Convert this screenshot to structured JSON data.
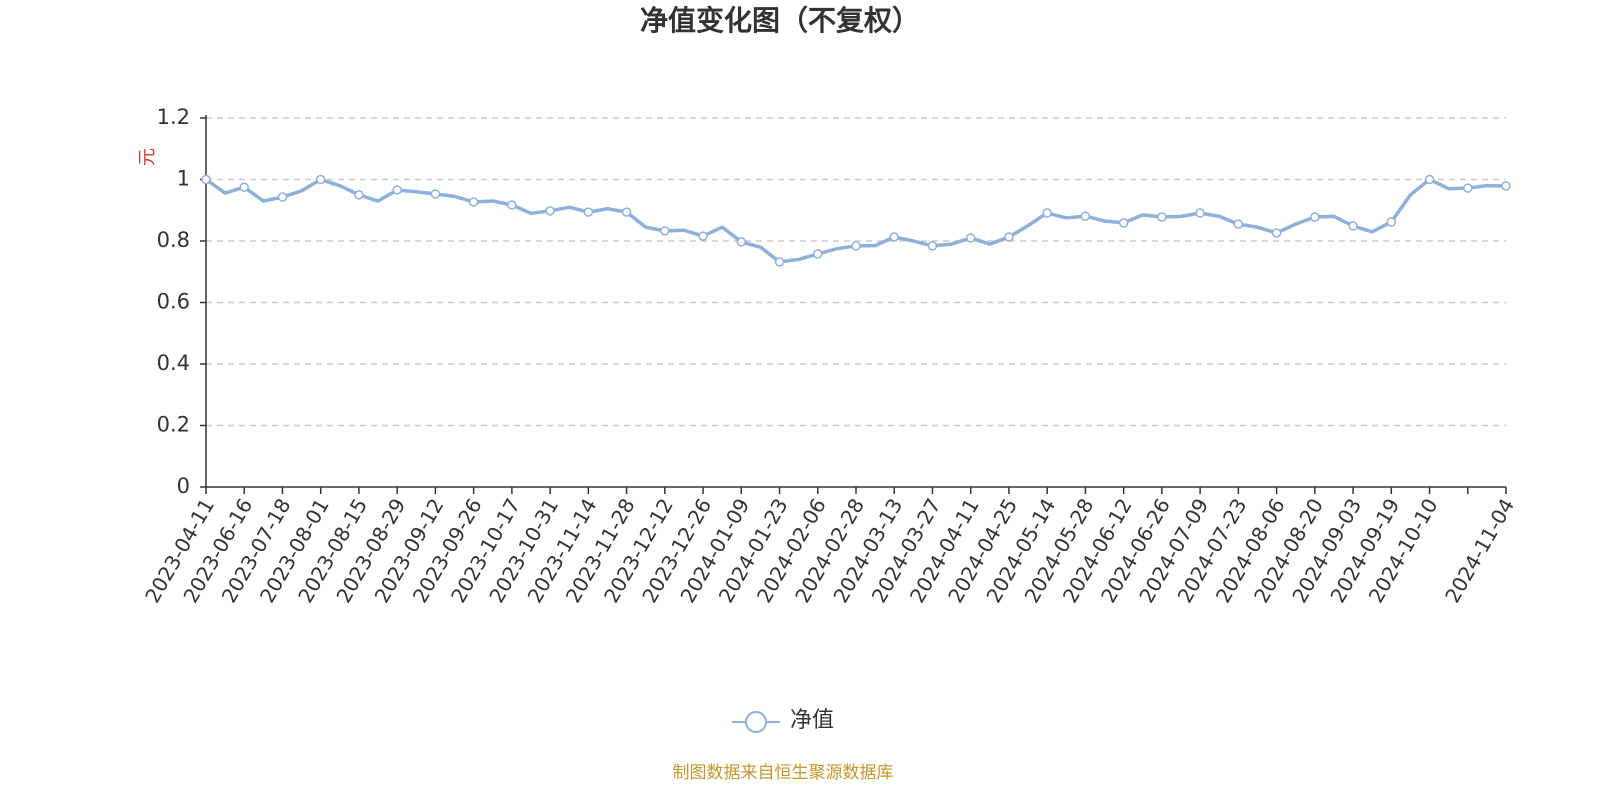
{
  "chart_data": {
    "type": "line",
    "title": "净值变化图（不复权）",
    "y_label": "元",
    "source": "制图数据来自恒生聚源数据库",
    "categories": [
      "2023-04-11",
      null,
      "2023-06-16",
      null,
      "2023-07-18",
      null,
      "2023-08-01",
      null,
      "2023-08-15",
      null,
      "2023-08-29",
      null,
      "2023-09-12",
      null,
      "2023-09-26",
      null,
      "2023-10-17",
      null,
      "2023-10-31",
      null,
      "2023-11-14",
      null,
      "2023-11-28",
      null,
      "2023-12-12",
      null,
      "2023-12-26",
      null,
      "2024-01-09",
      null,
      "2024-01-23",
      null,
      "2024-02-06",
      null,
      "2024-02-28",
      null,
      "2024-03-13",
      null,
      "2024-03-27",
      null,
      "2024-04-11",
      null,
      "2024-04-25",
      null,
      "2024-05-14",
      null,
      "2024-05-28",
      null,
      "2024-06-12",
      null,
      "2024-06-26",
      null,
      "2024-07-09",
      null,
      "2024-07-23",
      null,
      "2024-08-06",
      null,
      "2024-08-20",
      null,
      "2024-09-03",
      null,
      "2024-09-19",
      null,
      "2024-10-10",
      null,
      null,
      null,
      "2024-11-04"
    ],
    "series": [
      {
        "name": "净值",
        "color": "#8eb0dc",
        "values": [
          1.0,
          0.956,
          0.975,
          0.93,
          0.943,
          0.963,
          1.0,
          0.98,
          0.95,
          0.93,
          0.966,
          0.96,
          0.953,
          0.945,
          0.927,
          0.93,
          0.917,
          0.89,
          0.898,
          0.91,
          0.894,
          0.905,
          0.894,
          0.845,
          0.833,
          0.835,
          0.816,
          0.845,
          0.797,
          0.78,
          0.732,
          0.74,
          0.758,
          0.775,
          0.784,
          0.785,
          0.813,
          0.8,
          0.784,
          0.79,
          0.81,
          0.79,
          0.813,
          0.85,
          0.891,
          0.875,
          0.881,
          0.865,
          0.859,
          0.885,
          0.878,
          0.88,
          0.891,
          0.88,
          0.855,
          0.845,
          0.826,
          0.855,
          0.878,
          0.88,
          0.849,
          0.83,
          0.862,
          0.95,
          1.0,
          0.97,
          0.972,
          0.98,
          0.979
        ]
      }
    ],
    "ylim": [
      0,
      1.2
    ],
    "yticks": [
      0,
      0.2,
      0.4,
      0.6,
      0.8,
      1,
      1.2
    ],
    "grid": true
  }
}
